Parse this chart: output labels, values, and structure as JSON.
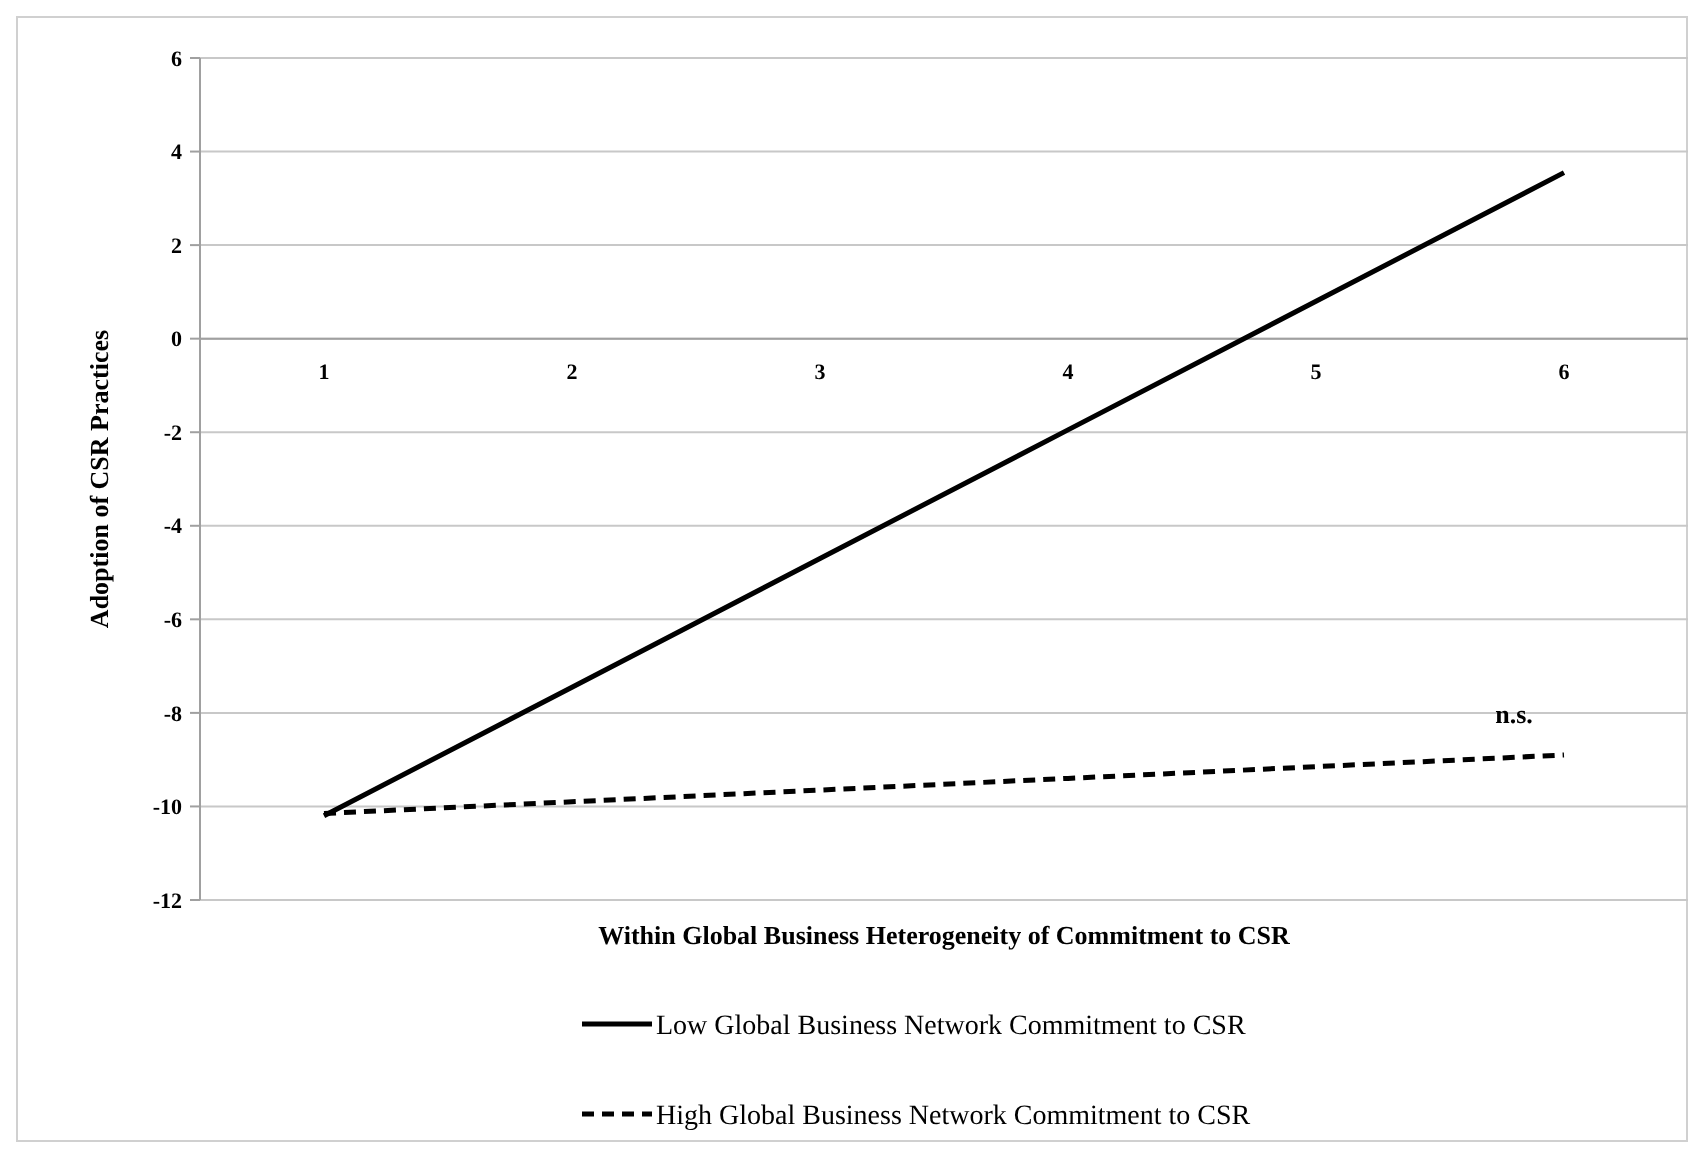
{
  "chart_data": {
    "type": "line",
    "xlabel": "Within Global Business Heterogeneity of Commitment to CSR",
    "ylabel": "Adoption of CSR Practices",
    "categories": [
      "1",
      "2",
      "3",
      "4",
      "5",
      "6"
    ],
    "series": [
      {
        "name": "Low Global Business Network Commitment to CSR",
        "color": "#000000",
        "values": [
          -10.2,
          -7.45,
          -4.7,
          -1.95,
          0.8,
          3.55
        ],
        "line_style": "solid"
      },
      {
        "name": "High Global Business Network Commitment to CSR",
        "color": "#000000",
        "values": [
          -10.15,
          -9.9,
          -9.65,
          -9.4,
          -9.15,
          -8.9
        ],
        "line_style": "dashed"
      }
    ],
    "ylim": [
      -12,
      6
    ],
    "yticks": [
      -12,
      -10,
      -8,
      -6,
      -4,
      -2,
      0,
      2,
      4,
      6
    ],
    "grid": "y",
    "legend": "bottom",
    "marker": "none",
    "annotations": [
      {
        "text": "n.s.",
        "x": "6",
        "y": -8.9
      }
    ]
  }
}
